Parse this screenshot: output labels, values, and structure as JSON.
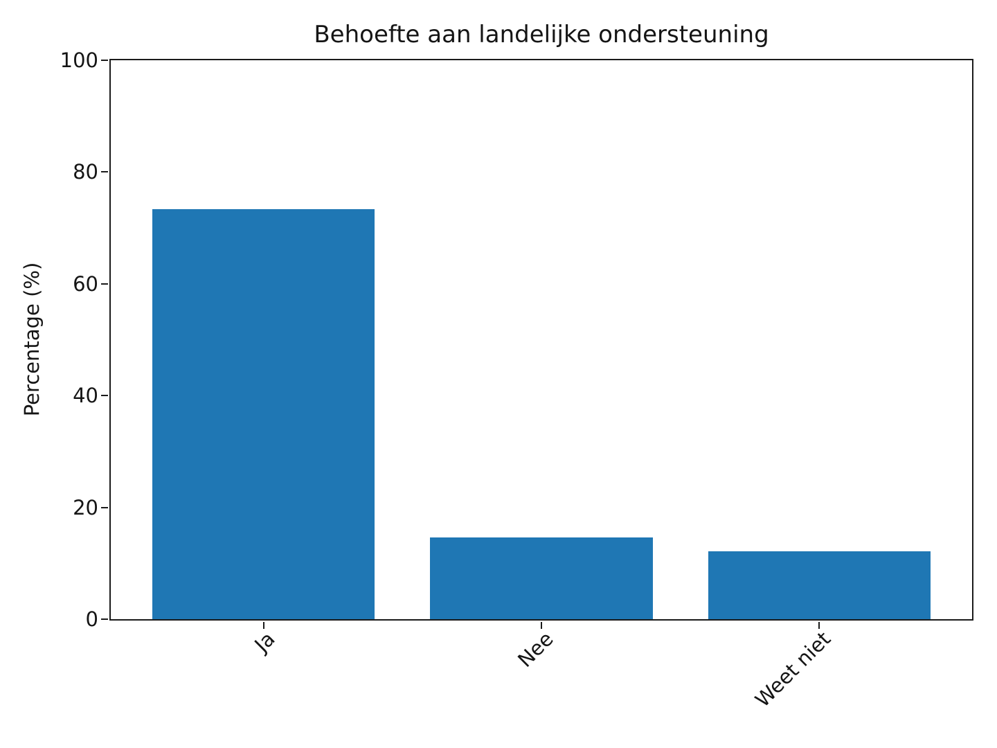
{
  "chart_data": {
    "type": "bar",
    "title": "Behoefte aan landelijke ondersteuning",
    "ylabel": "Percentage (%)",
    "xlabel": "",
    "categories": [
      "Ja",
      "Nee",
      "Weet niet"
    ],
    "values": [
      73.3,
      14.6,
      12.1
    ],
    "ylim": [
      0,
      100
    ],
    "yticks": [
      0,
      20,
      40,
      60,
      80,
      100
    ],
    "xlim": [
      -0.55,
      2.55
    ],
    "bar_width_fraction": 0.8,
    "x_tick_rotation_deg": 45,
    "grid": false,
    "legend": "none",
    "bar_color": "#1f77b4",
    "axis_color": "#1a1a1a",
    "background_color": "#ffffff"
  }
}
